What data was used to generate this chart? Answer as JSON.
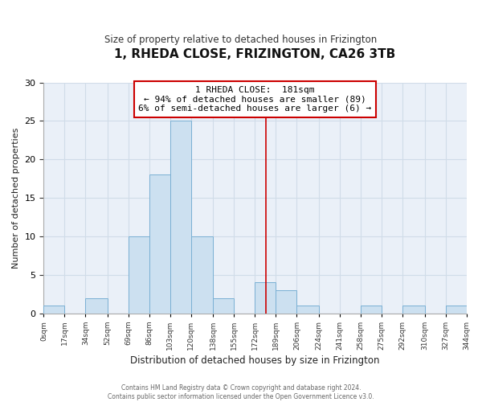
{
  "title": "1, RHEDA CLOSE, FRIZINGTON, CA26 3TB",
  "subtitle": "Size of property relative to detached houses in Frizington",
  "xlabel": "Distribution of detached houses by size in Frizington",
  "ylabel": "Number of detached properties",
  "bin_edges": [
    0,
    17,
    34,
    52,
    69,
    86,
    103,
    120,
    138,
    155,
    172,
    189,
    206,
    224,
    241,
    258,
    275,
    292,
    310,
    327,
    344
  ],
  "bar_heights": [
    1,
    0,
    2,
    0,
    10,
    18,
    25,
    10,
    2,
    0,
    4,
    3,
    1,
    0,
    0,
    1,
    0,
    1,
    0,
    1
  ],
  "bar_color": "#cce0f0",
  "bar_edgecolor": "#7ab0d4",
  "vline_x": 181,
  "vline_color": "#cc0000",
  "ylim": [
    0,
    30
  ],
  "annotation_title": "1 RHEDA CLOSE:  181sqm",
  "annotation_line1": "← 94% of detached houses are smaller (89)",
  "annotation_line2": "6% of semi-detached houses are larger (6) →",
  "annotation_box_edgecolor": "#cc0000",
  "footnote1": "Contains HM Land Registry data © Crown copyright and database right 2024.",
  "footnote2": "Contains public sector information licensed under the Open Government Licence v3.0.",
  "tick_labels": [
    "0sqm",
    "17sqm",
    "34sqm",
    "52sqm",
    "69sqm",
    "86sqm",
    "103sqm",
    "120sqm",
    "138sqm",
    "155sqm",
    "172sqm",
    "189sqm",
    "206sqm",
    "224sqm",
    "241sqm",
    "258sqm",
    "275sqm",
    "292sqm",
    "310sqm",
    "327sqm",
    "344sqm"
  ],
  "grid_color": "#d0dce8",
  "background_color": "#ffffff",
  "plot_bg_color": "#eaf0f8"
}
